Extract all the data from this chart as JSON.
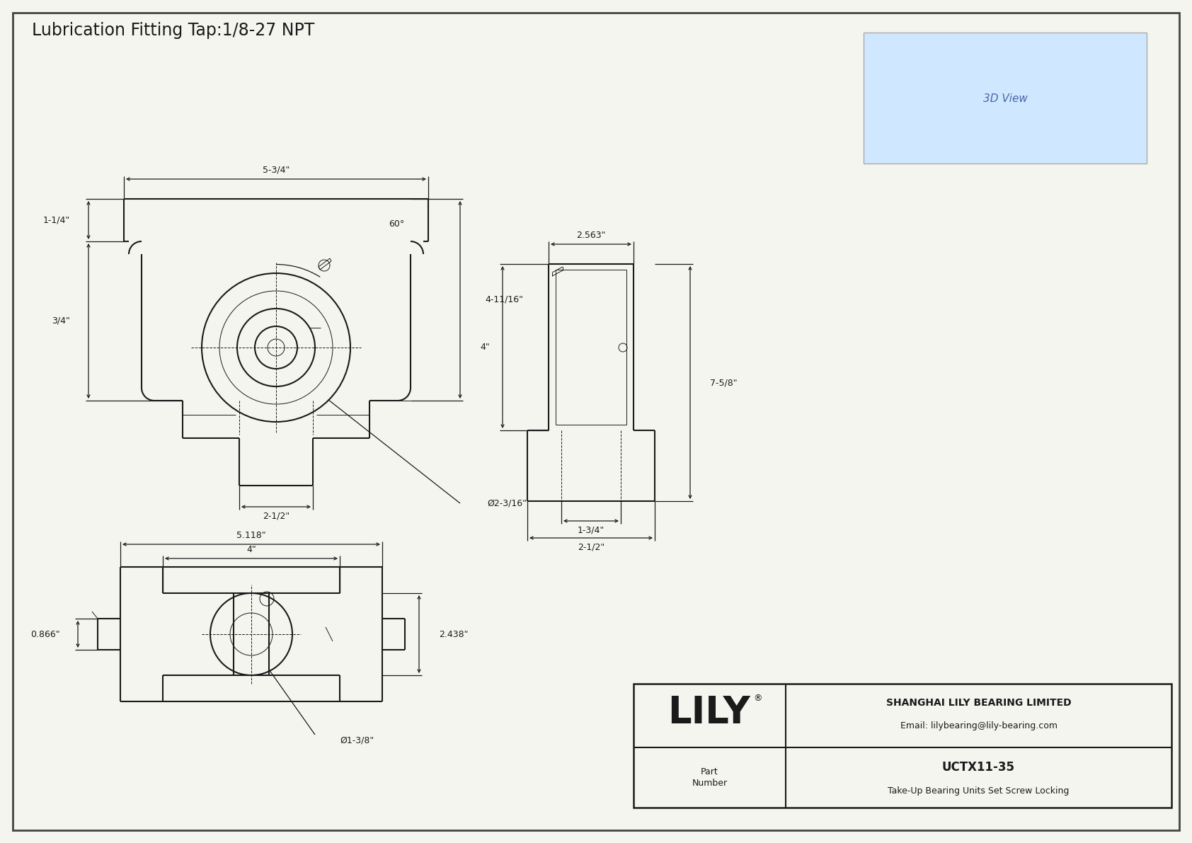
{
  "title": "Lubrication Fitting Tap:1/8-27 NPT",
  "bg_color": "#f5f5f0",
  "line_color": "#1a1a1a",
  "border_color": "#555555",
  "company": "SHANGHAI LILY BEARING LIMITED",
  "email": "Email: lilybearing@lily-bearing.com",
  "part_number": "UCTX11-35",
  "description": "Take-Up Bearing Units Set Screw Locking",
  "dims_front": {
    "width_top": "5-3/4\"",
    "height_left_upper": "1-1/4\"",
    "height_left_lower": "3/4\"",
    "width_bottom": "2-1/2\"",
    "height_right": "4-11/16\"",
    "bore_dia": "Ø2-3/16\"",
    "angle": "60°"
  },
  "dims_side": {
    "width_top": "2.563\"",
    "height_left": "4\"",
    "height_right": "7-5/8\"",
    "width_bottom1": "1-3/4\"",
    "width_bottom2": "2-1/2\""
  },
  "dims_bottom": {
    "width_outer": "5.118\"",
    "width_inner": "4\"",
    "height_right": "2.438\"",
    "height_left": "0.866\"",
    "bore_dia": "Ø1-3/8\""
  }
}
